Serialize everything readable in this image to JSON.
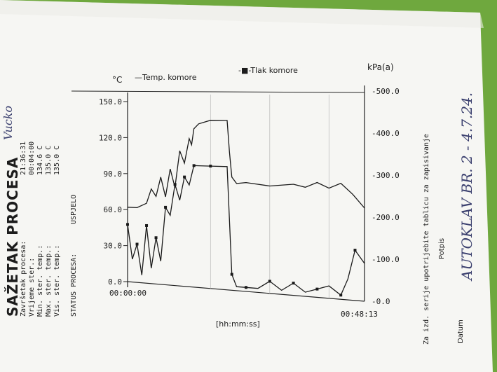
{
  "summary": {
    "title": "SAŽETAK PROCESA",
    "rows": [
      {
        "label": "Završetak procesa:",
        "value": "21:36:31"
      },
      {
        "label": "Vrijeme ster.:",
        "value": "00:04:00"
      },
      {
        "label": "Min. ster. temp.:",
        "value": "134.6 C"
      },
      {
        "label": "Max. ster. temp.:",
        "value": "135.0 C"
      },
      {
        "label": "Vis. ster. temp.:",
        "value": "135.0 C"
      }
    ],
    "status_label": "STATUS PROCESA:",
    "status_value": "USPJELO"
  },
  "chart": {
    "left_unit": "°C",
    "right_unit": "kPa(a)",
    "legend_temp": "—Temp. komore",
    "legend_pressure": "-■-Tlak komore",
    "x_axis_label": "[hh:mm:ss]",
    "x_start_label": "00:00:00",
    "x_end_label": "00:48:13",
    "left_ticks": [
      "0.0",
      "30.0",
      "60.0",
      "90.0",
      "120.0",
      "150.0"
    ],
    "right_ticks": [
      "0.0",
      "100.0",
      "200.0",
      "300.0",
      "400.0",
      "500.0"
    ]
  },
  "footer": {
    "note": "Za izd. serije upotrijebite tablicu za zapisivanje",
    "date_label": "Datum",
    "potpis_label": "Potpis",
    "handwriting_1": "AUTOKLAV BR. 2 - 4.7.24.",
    "handwriting_2": "Vucko"
  },
  "chart_data": {
    "type": "line",
    "x_range": [
      "00:00:00",
      "00:48:13"
    ],
    "left_ylim": [
      0,
      150
    ],
    "right_ylim": [
      0,
      500
    ],
    "series": [
      {
        "name": "Temp. komore",
        "axis": "left",
        "x_fraction": [
          0,
          0.04,
          0.08,
          0.1,
          0.12,
          0.14,
          0.16,
          0.18,
          0.2,
          0.22,
          0.24,
          0.26,
          0.27,
          0.28,
          0.3,
          0.35,
          0.42,
          0.43,
          0.44,
          0.46,
          0.5,
          0.6,
          0.7,
          0.75,
          0.8,
          0.85,
          0.9,
          0.95,
          1.0
        ],
        "values": [
          62,
          62,
          66,
          78,
          72,
          88,
          72,
          95,
          80,
          110,
          100,
          120,
          115,
          128,
          132,
          135,
          135,
          110,
          90,
          85,
          86,
          84,
          86,
          84,
          88,
          84,
          88,
          80,
          70
        ]
      },
      {
        "name": "Tlak komore",
        "axis": "right",
        "x_fraction": [
          0,
          0.02,
          0.04,
          0.06,
          0.08,
          0.1,
          0.12,
          0.14,
          0.16,
          0.18,
          0.2,
          0.22,
          0.24,
          0.26,
          0.28,
          0.3,
          0.35,
          0.42,
          0.44,
          0.46,
          0.5,
          0.55,
          0.6,
          0.65,
          0.7,
          0.75,
          0.8,
          0.85,
          0.9,
          0.93,
          0.96,
          1.0
        ],
        "values": [
          150,
          60,
          100,
          20,
          150,
          40,
          120,
          60,
          200,
          180,
          260,
          220,
          280,
          260,
          310,
          310,
          310,
          310,
          40,
          10,
          10,
          10,
          30,
          10,
          30,
          10,
          20,
          30,
          10,
          50,
          120,
          90
        ]
      }
    ]
  }
}
